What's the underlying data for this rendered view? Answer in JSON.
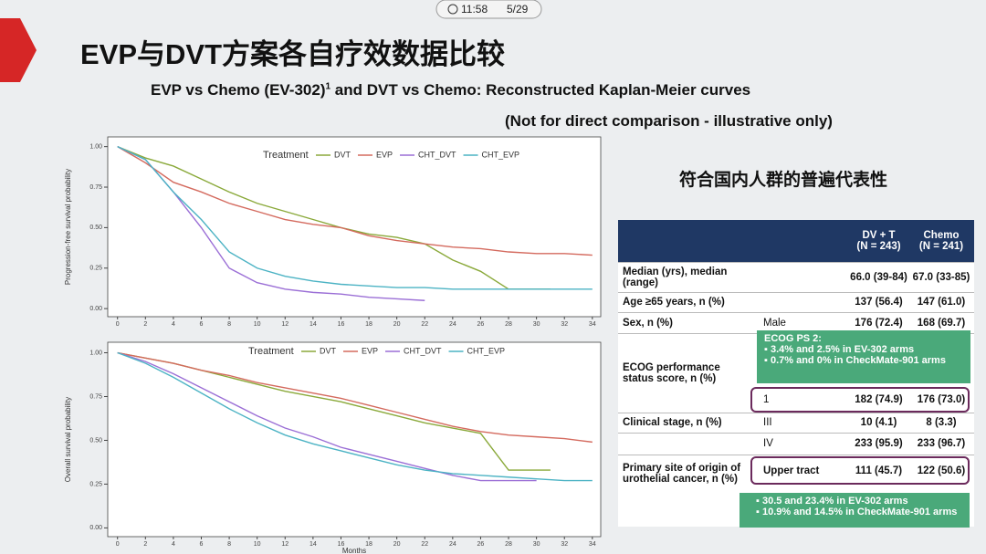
{
  "status": {
    "time": "11:58",
    "page": "5/29"
  },
  "title": "EVP与DVT方案各自疗效数据比较",
  "subtitle": {
    "pre": "EVP vs Chemo (EV-302)",
    "sup": "1",
    "post": " and DVT vs Chemo: Reconstructed Kaplan-Meier curves"
  },
  "note": "(Not for direct comparison - illustrative only)",
  "side_heading": "符合国内人群的普遍代表性",
  "charts": [
    {
      "type": "line",
      "ylabel": "Progression-free survival probability",
      "legend_title": "Treatment",
      "xlim": [
        -0.7,
        34.6
      ],
      "xticks": [
        0,
        2,
        4,
        6,
        8,
        10,
        12,
        14,
        16,
        18,
        20,
        22,
        24,
        26,
        28,
        30,
        32,
        34
      ],
      "ylim": [
        -0.05,
        1.06
      ],
      "yticks": [
        {
          "value": 0,
          "label": "0.00"
        },
        {
          "value": 0.25,
          "label": "0.25"
        },
        {
          "value": 0.5,
          "label": "0.50"
        },
        {
          "value": 0.75,
          "label": "0.75"
        },
        {
          "value": 1,
          "label": "1.00"
        }
      ],
      "series": [
        {
          "name": "DVT",
          "color": "#8aa93a",
          "x": [
            0,
            2,
            4,
            6,
            8,
            10,
            12,
            14,
            16,
            18,
            20,
            22,
            24,
            26,
            28,
            30,
            31
          ],
          "values": [
            1,
            0.93,
            0.88,
            0.8,
            0.72,
            0.65,
            0.6,
            0.55,
            0.5,
            0.46,
            0.44,
            0.4,
            0.3,
            0.23,
            0.12,
            0.12,
            0.12
          ]
        },
        {
          "name": "EVP",
          "color": "#d46a5e",
          "x": [
            0,
            2,
            4,
            6,
            8,
            10,
            12,
            14,
            16,
            18,
            20,
            22,
            24,
            26,
            28,
            30,
            32,
            34
          ],
          "values": [
            1,
            0.9,
            0.78,
            0.72,
            0.65,
            0.6,
            0.55,
            0.52,
            0.5,
            0.45,
            0.42,
            0.4,
            0.38,
            0.37,
            0.35,
            0.34,
            0.34,
            0.33
          ]
        },
        {
          "name": "CHT_DVT",
          "color": "#9b6fd6",
          "x": [
            0,
            2,
            4,
            6,
            8,
            10,
            12,
            14,
            16,
            18,
            20,
            22
          ],
          "values": [
            1,
            0.92,
            0.72,
            0.5,
            0.25,
            0.16,
            0.12,
            0.1,
            0.09,
            0.07,
            0.06,
            0.05
          ]
        },
        {
          "name": "CHT_EVP",
          "color": "#4cb3c4",
          "x": [
            0,
            2,
            4,
            6,
            8,
            10,
            12,
            14,
            16,
            18,
            20,
            22,
            24,
            26,
            28,
            30,
            32,
            34
          ],
          "values": [
            1,
            0.92,
            0.72,
            0.55,
            0.35,
            0.25,
            0.2,
            0.17,
            0.15,
            0.14,
            0.13,
            0.13,
            0.12,
            0.12,
            0.12,
            0.12,
            0.12,
            0.12
          ]
        }
      ]
    },
    {
      "type": "line",
      "ylabel": "Overall survival probability",
      "legend_title": "Treatment",
      "xlabel": "Months",
      "xlim": [
        -0.7,
        34.6
      ],
      "xticks": [
        0,
        2,
        4,
        6,
        8,
        10,
        12,
        14,
        16,
        18,
        20,
        22,
        24,
        26,
        28,
        30,
        32,
        34
      ],
      "ylim": [
        -0.05,
        1.06
      ],
      "yticks": [
        {
          "value": 0,
          "label": "0.00"
        },
        {
          "value": 0.25,
          "label": "0.25"
        },
        {
          "value": 0.5,
          "label": "0.50"
        },
        {
          "value": 0.75,
          "label": "0.75"
        },
        {
          "value": 1,
          "label": "1.00"
        }
      ],
      "series": [
        {
          "name": "DVT",
          "color": "#8aa93a",
          "x": [
            0,
            2,
            4,
            6,
            8,
            10,
            12,
            14,
            16,
            18,
            20,
            22,
            24,
            26,
            28,
            30,
            31
          ],
          "values": [
            1,
            0.97,
            0.94,
            0.9,
            0.86,
            0.82,
            0.78,
            0.75,
            0.72,
            0.68,
            0.64,
            0.6,
            0.57,
            0.54,
            0.33,
            0.33,
            0.33
          ]
        },
        {
          "name": "EVP",
          "color": "#d46a5e",
          "x": [
            0,
            2,
            4,
            6,
            8,
            10,
            12,
            14,
            16,
            18,
            20,
            22,
            24,
            26,
            28,
            30,
            32,
            34
          ],
          "values": [
            1,
            0.97,
            0.94,
            0.9,
            0.87,
            0.83,
            0.8,
            0.77,
            0.74,
            0.7,
            0.66,
            0.62,
            0.58,
            0.55,
            0.53,
            0.52,
            0.51,
            0.49
          ]
        },
        {
          "name": "CHT_DVT",
          "color": "#9b6fd6",
          "x": [
            0,
            2,
            4,
            6,
            8,
            10,
            12,
            14,
            16,
            18,
            20,
            22,
            24,
            26,
            28,
            30
          ],
          "values": [
            1,
            0.95,
            0.88,
            0.8,
            0.72,
            0.64,
            0.57,
            0.52,
            0.46,
            0.42,
            0.38,
            0.34,
            0.3,
            0.27,
            0.27,
            0.27
          ]
        },
        {
          "name": "CHT_EVP",
          "color": "#4cb3c4",
          "x": [
            0,
            2,
            4,
            6,
            8,
            10,
            12,
            14,
            16,
            18,
            20,
            22,
            24,
            26,
            28,
            30,
            32,
            34
          ],
          "values": [
            1,
            0.94,
            0.86,
            0.77,
            0.68,
            0.6,
            0.53,
            0.48,
            0.44,
            0.4,
            0.36,
            0.33,
            0.31,
            0.3,
            0.29,
            0.28,
            0.27,
            0.27
          ]
        }
      ]
    }
  ],
  "table": {
    "columns": [
      {
        "name": "DV + T",
        "n": "(N = 243)"
      },
      {
        "name": "Chemo",
        "n": "(N = 241)"
      }
    ],
    "rows": [
      [
        "Median (yrs), median (range)",
        "",
        "66.0 (39-84)",
        "67.0 (33-85)"
      ],
      [
        "Age ≥65 years, n (%)",
        "",
        "137 (56.4)",
        "147 (61.0)"
      ],
      [
        "Sex, n (%)",
        "Male",
        "176 (72.4)",
        "168 (69.7)"
      ],
      [
        "ECOG performance status score, n (%)",
        "1",
        "182 (74.9)",
        "176 (73.0)"
      ],
      [
        "Clinical stage, n (%)",
        "III",
        "10 (4.1)",
        "8 (3.3)"
      ],
      [
        "",
        "IV",
        "233 (95.9)",
        "233 (96.7)"
      ],
      [
        "Primary site of origin of urothelial cancer, n (%)",
        "Upper tract",
        "111 (45.7)",
        "122 (50.6)"
      ]
    ],
    "ecog_callout": {
      "title": "ECOG PS 2:",
      "items": [
        "3.4% and 2.5% in EV-302 arms",
        "0.7% and 0% in CheckMate-901 arms"
      ]
    },
    "site_callout": {
      "items": [
        "30.5 and 23.4% in EV-302 arms",
        "10.9% and 14.5% in CheckMate-901 arms"
      ]
    }
  }
}
